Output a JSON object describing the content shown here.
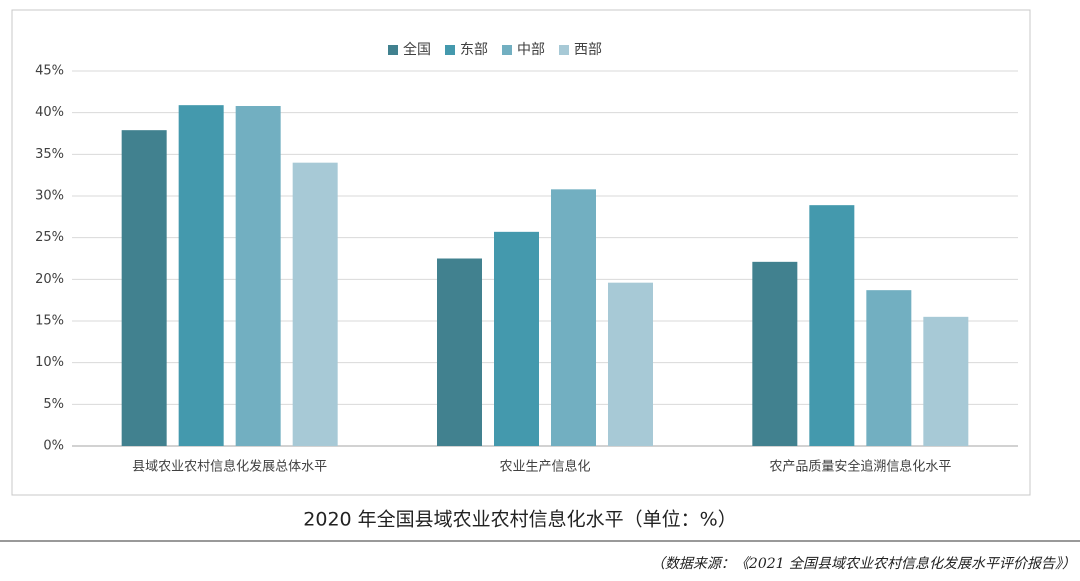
{
  "chart_data": {
    "type": "bar",
    "title": "2020 年全国县域农业农村信息化水平（单位：%）",
    "source": "（数据来源：《2021 全国县域农业农村信息化发展水平评价报告》）",
    "categories": [
      "县域农业农村信息化发展总体水平",
      "农业生产信息化",
      "农产品质量安全追溯信息化水平"
    ],
    "series": [
      {
        "name": "全国",
        "color": "#41818f",
        "values": [
          37.9,
          22.5,
          22.1
        ]
      },
      {
        "name": "东部",
        "color": "#4499ad",
        "values": [
          40.9,
          25.7,
          28.9
        ]
      },
      {
        "name": "中部",
        "color": "#72afc1",
        "values": [
          40.8,
          30.8,
          18.7
        ]
      },
      {
        "name": "西部",
        "color": "#a7c9d6",
        "values": [
          34.0,
          19.6,
          15.5
        ]
      }
    ],
    "ylim": [
      0,
      45
    ],
    "yticks": [
      {
        "value": 0,
        "label": "0%"
      },
      {
        "value": 5,
        "label": "5%"
      },
      {
        "value": 10,
        "label": "10%"
      },
      {
        "value": 15,
        "label": "15%"
      },
      {
        "value": 20,
        "label": "20%"
      },
      {
        "value": 25,
        "label": "25%"
      },
      {
        "value": 30,
        "label": "30%"
      },
      {
        "value": 35,
        "label": "35%"
      },
      {
        "value": 40,
        "label": "40%"
      },
      {
        "value": 45,
        "label": "45%"
      }
    ],
    "grid": true,
    "legend": "top"
  }
}
